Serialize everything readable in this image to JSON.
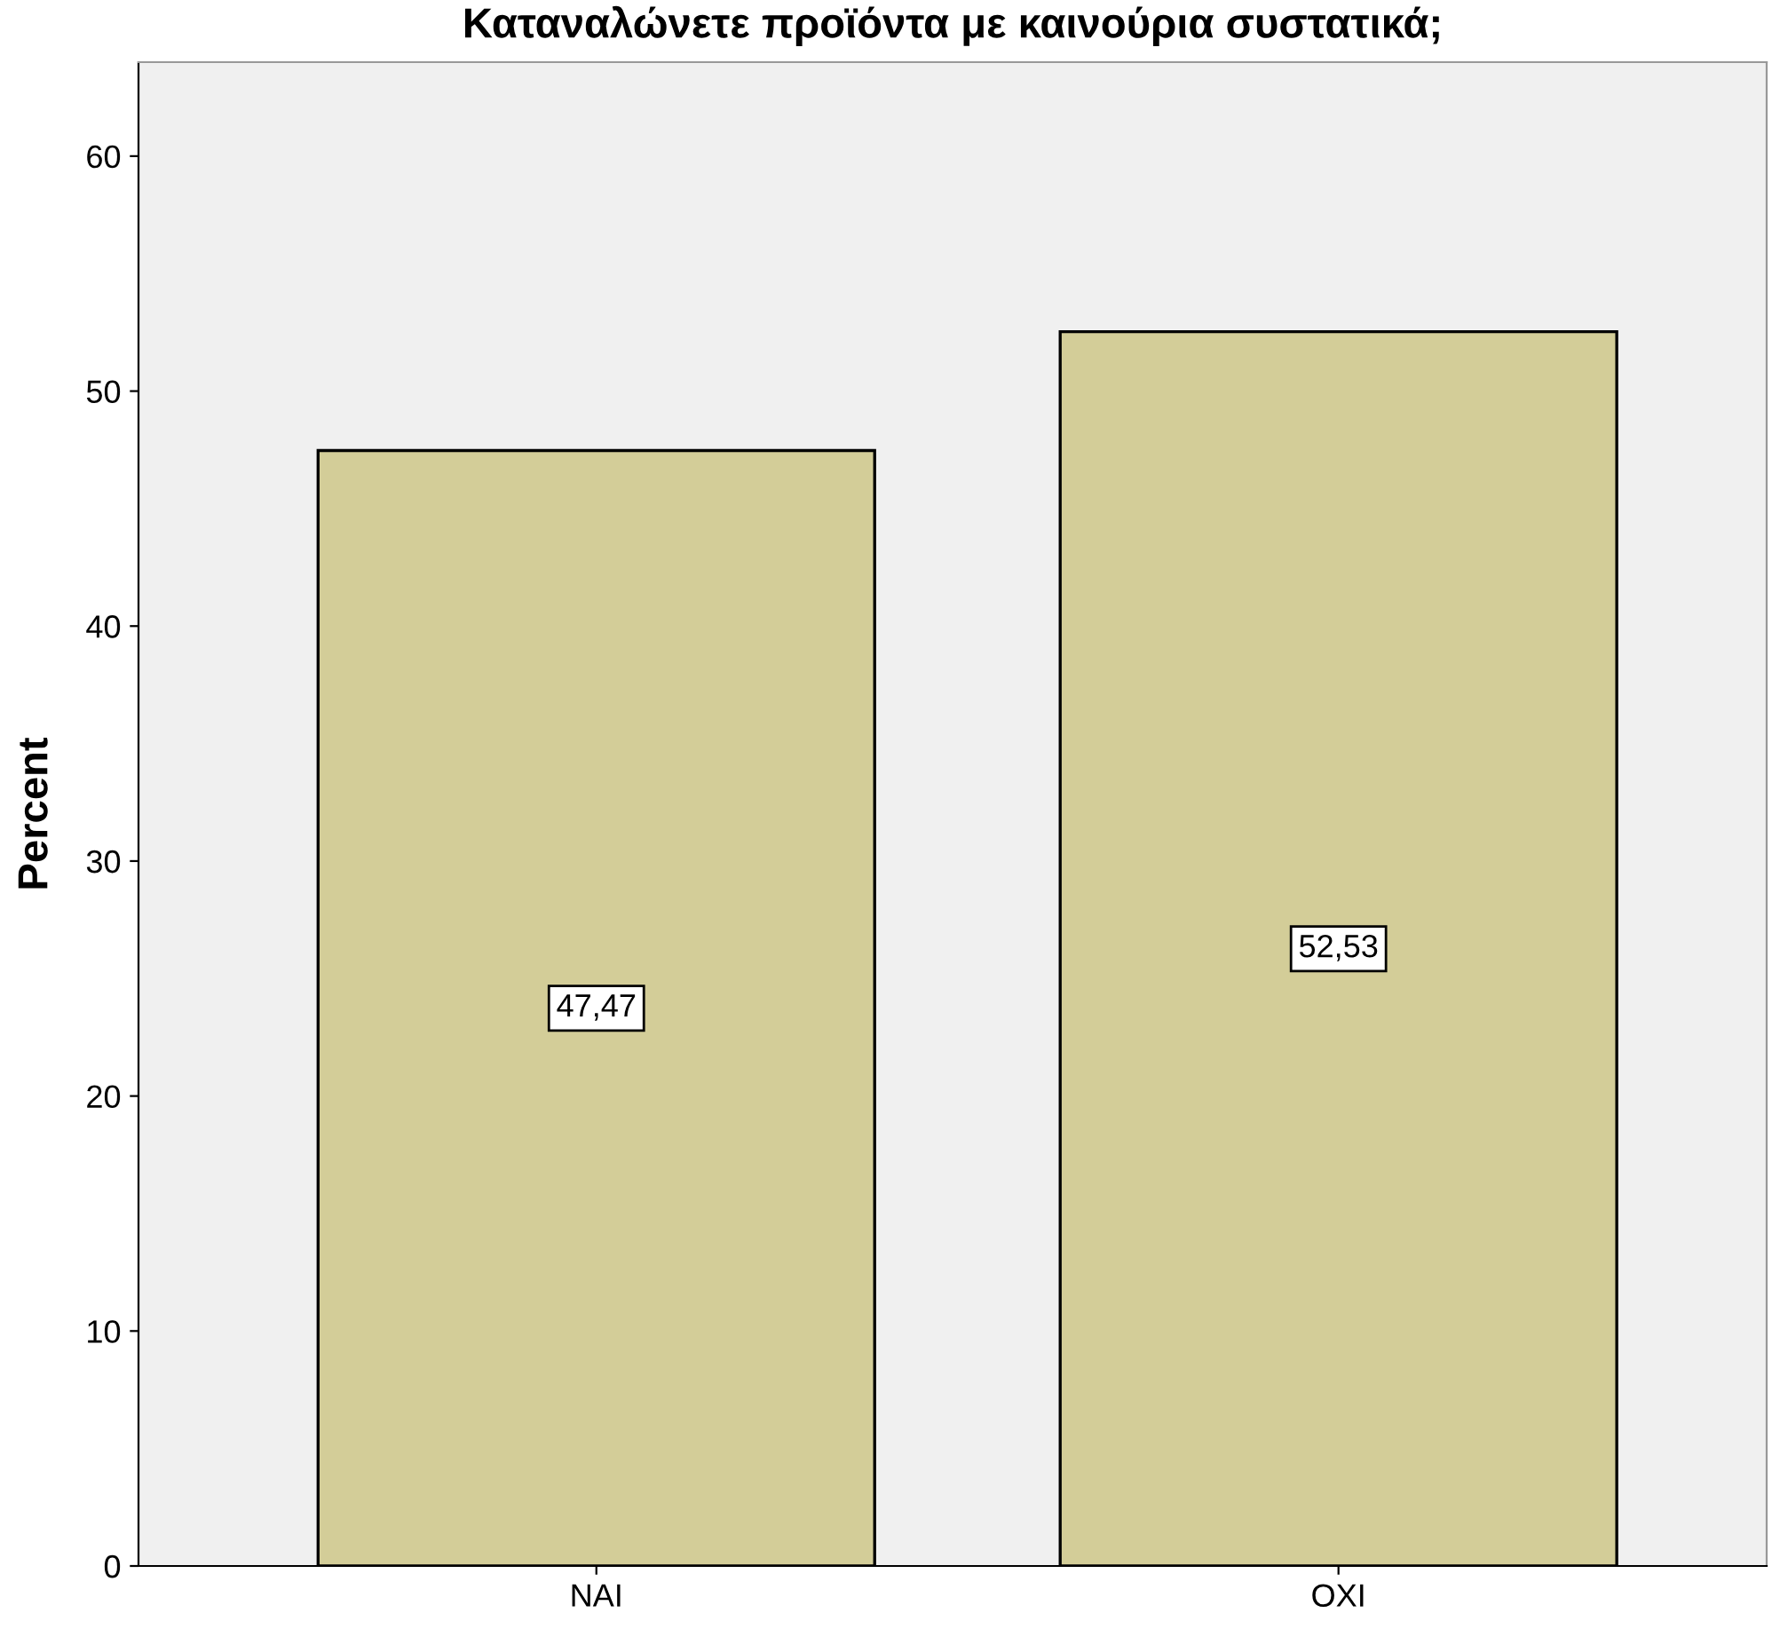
{
  "chart_data": {
    "type": "bar",
    "title": "Καταναλώνετε προϊόντα με καινούρια συστατικά;",
    "ylabel": "Percent",
    "categories": [
      "ΝΑΙ",
      "ΟΧΙ"
    ],
    "values": [
      47.47,
      52.53
    ],
    "value_labels": [
      "47,47",
      "52,53"
    ],
    "color": "#d3cd98",
    "ylim": [
      0,
      64
    ],
    "yticks": [
      0,
      10,
      20,
      30,
      40,
      50,
      60
    ],
    "grid": false,
    "legend": false
  }
}
